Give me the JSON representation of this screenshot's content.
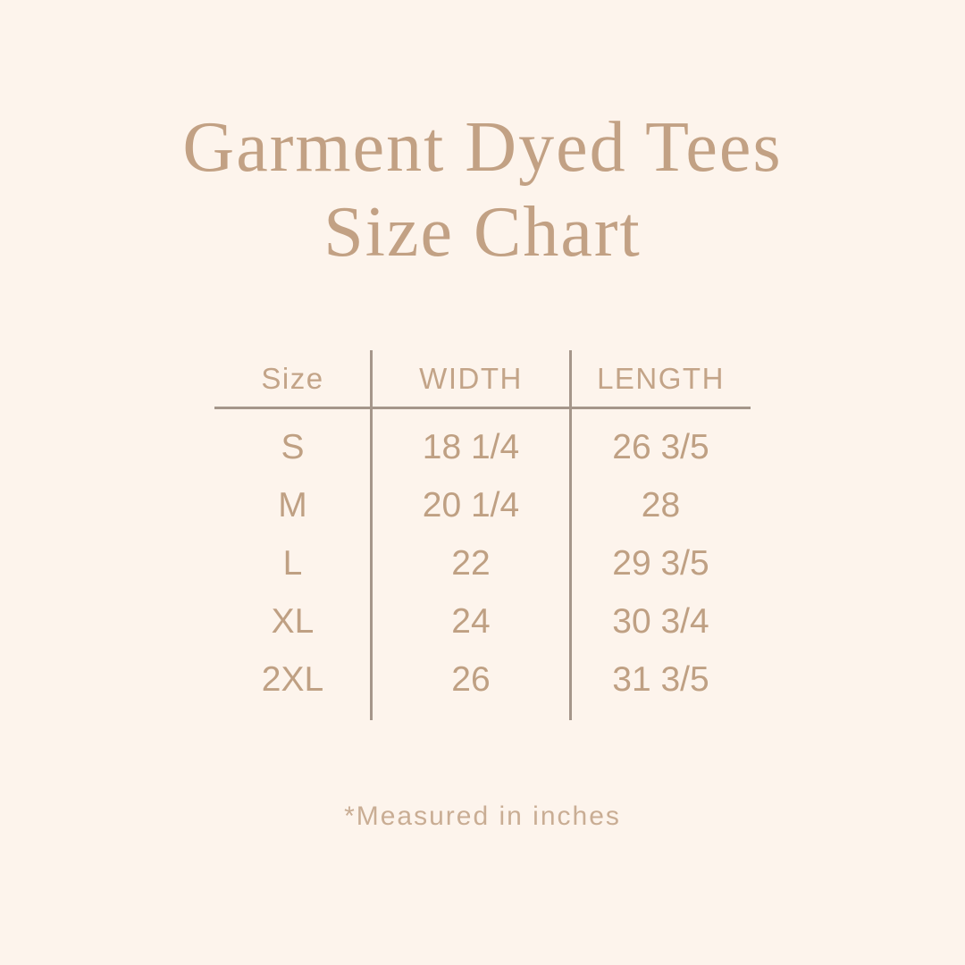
{
  "title": {
    "line1": "Garment Dyed Tees",
    "line2": "Size Chart"
  },
  "table": {
    "headers": [
      "Size",
      "WIDTH",
      "LENGTH"
    ],
    "rows": [
      {
        "size": "S",
        "width": "18 1/4",
        "length": "26 3/5"
      },
      {
        "size": "M",
        "width": "20 1/4",
        "length": "28"
      },
      {
        "size": "L",
        "width": "22",
        "length": "29 3/5"
      },
      {
        "size": "XL",
        "width": "24",
        "length": "30 3/4"
      },
      {
        "size": "2XL",
        "width": "26",
        "length": "31 3/5"
      }
    ]
  },
  "footnote": "*Measured in inches",
  "colors": {
    "background": "#fdf4ec",
    "title_text": "#c2a184",
    "table_text": "#bfa083",
    "header_text": "#c3a488",
    "lines": "#a5968a",
    "footnote_text": "#c9ad94"
  },
  "chart_data": {
    "type": "table",
    "title": "Garment Dyed Tees Size Chart",
    "columns": [
      "Size",
      "WIDTH",
      "LENGTH"
    ],
    "rows": [
      [
        "S",
        "18 1/4",
        "26 3/5"
      ],
      [
        "M",
        "20 1/4",
        "28"
      ],
      [
        "L",
        "22",
        "29 3/5"
      ],
      [
        "XL",
        "24",
        "30 3/4"
      ],
      [
        "2XL",
        "26",
        "31 3/5"
      ]
    ],
    "units": "inches",
    "note": "*Measured in inches"
  }
}
